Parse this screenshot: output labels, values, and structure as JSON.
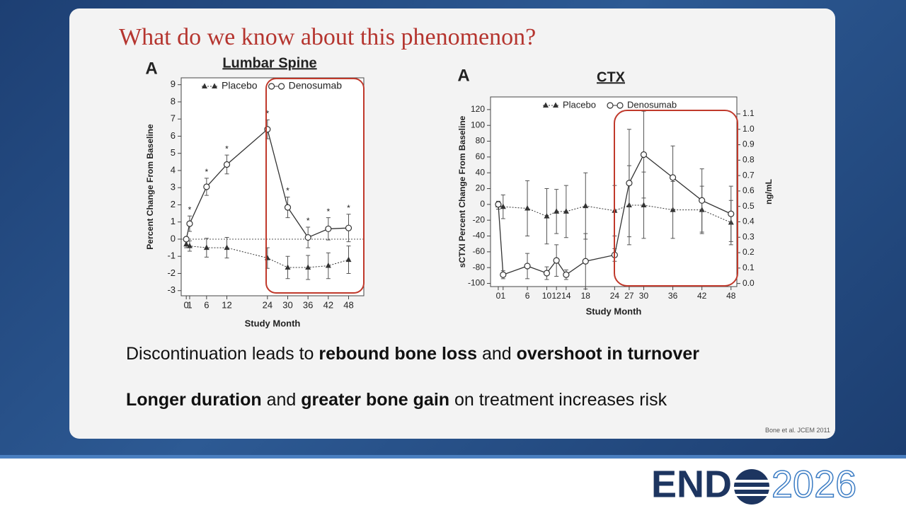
{
  "slide": {
    "title": "What do we know about this phenomenon?",
    "bullets": [
      [
        "Discontinuation leads to ",
        "rebound bone loss",
        " and ",
        "overshoot in turnover"
      ],
      [
        "Longer duration",
        " and ",
        "greater bone gain",
        " on treatment increases risk"
      ]
    ],
    "citation": "Bone et al. JCEM 2011",
    "logo": {
      "left": "END",
      "right": "2026"
    }
  },
  "chart_data": [
    {
      "type": "line",
      "panel": "A",
      "title": "Lumbar Spine",
      "x_label": "Study Month",
      "y_label": "Percent Change From Baseline",
      "x": [
        0,
        1,
        6,
        12,
        24,
        30,
        36,
        42,
        48
      ],
      "xlim": [
        -1.5,
        52.5
      ],
      "xticks": [
        0,
        1,
        6,
        12,
        24,
        30,
        36,
        42,
        48
      ],
      "ylim": [
        -3.3,
        9.4
      ],
      "yticks": [
        -3,
        -2,
        -1,
        0,
        1,
        2,
        3,
        4,
        5,
        6,
        7,
        8,
        9
      ],
      "hline": 0,
      "legend": "upper center",
      "series": [
        {
          "name": "Placebo",
          "color": "#333333",
          "marker": "triangle",
          "dashed": true,
          "values": [
            -0.3,
            -0.4,
            -0.5,
            -0.5,
            -1.1,
            -1.65,
            -1.65,
            -1.55,
            -1.2
          ],
          "errors": [
            0.2,
            0.3,
            0.55,
            0.6,
            0.6,
            0.65,
            0.7,
            0.75,
            0.8
          ]
        },
        {
          "name": "Denosumab",
          "color": "#333333",
          "marker": "circle",
          "dashed": false,
          "values": [
            0,
            0.9,
            3.05,
            4.35,
            6.4,
            1.85,
            0.1,
            0.6,
            0.65
          ],
          "errors": [
            0.1,
            0.45,
            0.5,
            0.55,
            0.55,
            0.6,
            0.6,
            0.65,
            0.8
          ]
        }
      ],
      "significance": {
        "label": "*",
        "x": [
          1,
          6,
          12,
          24,
          30,
          36,
          42,
          48
        ]
      }
    },
    {
      "type": "line",
      "panel": "A",
      "title": "CTX",
      "x_label": "Study Month",
      "y_label": "sCTXI Percent Change From Baseline",
      "y2_label": "ng/mL",
      "x": [
        0,
        1,
        6,
        10,
        12,
        14,
        18,
        24,
        27,
        30,
        36,
        42,
        48
      ],
      "xlim": [
        -1.6,
        49.2
      ],
      "xticks": [
        0,
        1,
        6,
        10,
        12,
        14,
        18,
        24,
        27,
        30,
        36,
        42,
        48
      ],
      "ylim": [
        -104,
        136
      ],
      "yticks": [
        -100,
        -80,
        -60,
        -40,
        -20,
        0,
        20,
        40,
        60,
        80,
        100,
        120
      ],
      "y2lim": [
        -0.02,
        1.21
      ],
      "y2ticks": [
        {
          "value": 0,
          "label": "0.0"
        },
        0.1,
        0.2,
        0.3,
        0.4,
        0.5,
        0.6,
        0.7,
        0.8,
        0.9,
        {
          "value": 1,
          "label": "1.0"
        },
        1.1
      ],
      "legend": "upper center",
      "series": [
        {
          "name": "Placebo",
          "color": "#333333",
          "marker": "triangle",
          "dashed": true,
          "values": [
            -1,
            -3,
            -5,
            -15,
            -9,
            -9,
            -2,
            -8,
            -1,
            -1,
            -7,
            -7,
            -23
          ],
          "errors": [
            5,
            15,
            35,
            35,
            28,
            33,
            42,
            32,
            50,
            42,
            36,
            30,
            28
          ]
        },
        {
          "name": "Denosumab",
          "color": "#333333",
          "marker": "circle",
          "dashed": false,
          "values": [
            0,
            -89,
            -78,
            -87,
            -71,
            -89,
            -72,
            -64,
            27,
            63,
            34,
            5,
            -12
          ],
          "errors": [
            3,
            5,
            16,
            8,
            20,
            6,
            35,
            8,
            68,
            55,
            40,
            40,
            35
          ]
        }
      ]
    }
  ]
}
